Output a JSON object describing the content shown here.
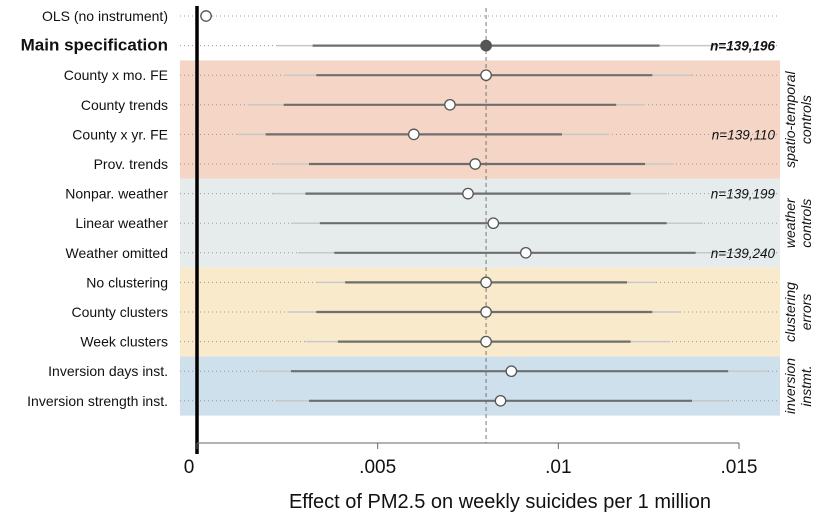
{
  "chart_data": {
    "type": "scatter",
    "subtype": "coefficient-plot",
    "xlabel": "Effect of PM2.5 on weekly suicides per 1 million",
    "xlim": [
      -0.0005,
      0.0155
    ],
    "xticks": [
      0,
      0.005,
      0.01,
      0.015
    ],
    "xtick_labels": [
      "0",
      ".005",
      ".01",
      ".015"
    ],
    "reference_line": {
      "value": 0.008,
      "style": "dashed"
    },
    "colors": {
      "point": "#555555",
      "ci_inner": "#6e6e6e",
      "ci_outer": "#c8c8c8",
      "band_spatiotemporal": "#f5d6c6",
      "band_weather": "#e6ecec",
      "band_clustering": "#faeacc",
      "band_instrument": "#cde0ec"
    },
    "rows": [
      {
        "label": "OLS (no instrument)",
        "estimate": 0.00025,
        "ci95": [
          0.0001,
          0.00045
        ],
        "ci90": [
          0.00012,
          0.0004
        ],
        "bold": false,
        "filled": false,
        "n": ""
      },
      {
        "label": "Main specification",
        "estimate": 0.008,
        "ci95": [
          0.0022,
          0.0146
        ],
        "ci90": [
          0.0032,
          0.0128
        ],
        "bold": true,
        "filled": true,
        "n": "n=139,196"
      },
      {
        "label": "County x mo. FE",
        "estimate": 0.008,
        "ci95": [
          0.0024,
          0.0137
        ],
        "ci90": [
          0.0033,
          0.0126
        ],
        "bold": false,
        "filled": false,
        "n": ""
      },
      {
        "label": "County trends",
        "estimate": 0.007,
        "ci95": [
          0.0014,
          0.0124
        ],
        "ci90": [
          0.0024,
          0.0116
        ],
        "bold": false,
        "filled": false,
        "n": ""
      },
      {
        "label": "County x yr. FE",
        "estimate": 0.006,
        "ci95": [
          0.0011,
          0.0114
        ],
        "ci90": [
          0.0019,
          0.0101
        ],
        "bold": false,
        "filled": false,
        "n": "n=139,110"
      },
      {
        "label": "Prov. trends",
        "estimate": 0.0077,
        "ci95": [
          0.0021,
          0.0132
        ],
        "ci90": [
          0.0031,
          0.0124
        ],
        "bold": false,
        "filled": false,
        "n": ""
      },
      {
        "label": "Nonpar. weather",
        "estimate": 0.0075,
        "ci95": [
          0.0021,
          0.013
        ],
        "ci90": [
          0.003,
          0.012
        ],
        "bold": false,
        "filled": false,
        "n": "n=139,199"
      },
      {
        "label": "Linear weather",
        "estimate": 0.0082,
        "ci95": [
          0.0026,
          0.014
        ],
        "ci90": [
          0.0034,
          0.013
        ],
        "bold": false,
        "filled": false,
        "n": ""
      },
      {
        "label": "Weather omitted",
        "estimate": 0.0091,
        "ci95": [
          0.0028,
          0.015
        ],
        "ci90": [
          0.0038,
          0.0138
        ],
        "bold": false,
        "filled": false,
        "n": "n=139,240"
      },
      {
        "label": "No clustering",
        "estimate": 0.008,
        "ci95": [
          0.0033,
          0.0127
        ],
        "ci90": [
          0.0041,
          0.0119
        ],
        "bold": false,
        "filled": false,
        "n": ""
      },
      {
        "label": "County clusters",
        "estimate": 0.008,
        "ci95": [
          0.0025,
          0.0134
        ],
        "ci90": [
          0.0033,
          0.0126
        ],
        "bold": false,
        "filled": false,
        "n": ""
      },
      {
        "label": "Week clusters",
        "estimate": 0.008,
        "ci95": [
          0.003,
          0.0131
        ],
        "ci90": [
          0.0039,
          0.012
        ],
        "bold": false,
        "filled": false,
        "n": ""
      },
      {
        "label": "Inversion days inst.",
        "estimate": 0.0087,
        "ci95": [
          0.0017,
          0.0158
        ],
        "ci90": [
          0.0026,
          0.0147
        ],
        "bold": false,
        "filled": false,
        "n": ""
      },
      {
        "label": "Inversion strength inst.",
        "estimate": 0.0084,
        "ci95": [
          0.0022,
          0.0147
        ],
        "ci90": [
          0.0031,
          0.0137
        ],
        "bold": false,
        "filled": false,
        "n": ""
      }
    ],
    "groups": [
      {
        "label": "spatio-temporal controls",
        "lines": [
          "spatio-temporal",
          "controls"
        ],
        "first_row": 2,
        "last_row": 5,
        "color_key": "band_spatiotemporal"
      },
      {
        "label": "weather controls",
        "lines": [
          "weather",
          "controls"
        ],
        "first_row": 6,
        "last_row": 8,
        "color_key": "band_weather"
      },
      {
        "label": "clustering errors",
        "lines": [
          "clustering",
          "errors"
        ],
        "first_row": 9,
        "last_row": 11,
        "color_key": "band_clustering"
      },
      {
        "label": "inversion instmt.",
        "lines": [
          "inversion",
          "instmt."
        ],
        "first_row": 12,
        "last_row": 13,
        "color_key": "band_instrument"
      }
    ]
  }
}
